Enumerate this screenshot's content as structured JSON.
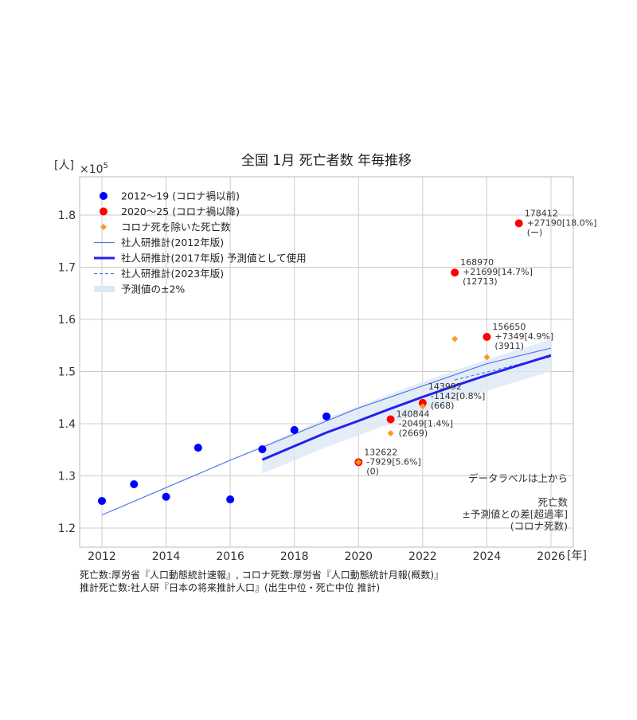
{
  "chart_data": {
    "type": "scatter",
    "title": "全国 1月 死亡者数 年毎推移",
    "ylabel": "[人]",
    "yexp": "×10",
    "yexp_sup": "5",
    "xlabel": "[年]",
    "xlim": [
      2011.4,
      2026.7
    ],
    "ylim": [
      1.165,
      1.87
    ],
    "xticks": [
      2012,
      2014,
      2016,
      2018,
      2020,
      2022,
      2024,
      2026
    ],
    "yticks": [
      1.2,
      1.3,
      1.4,
      1.5,
      1.6,
      1.7,
      1.8
    ],
    "grid": true,
    "legend_placement": "top-left",
    "legend": [
      "2012〜19 (コロナ禍以前)",
      "2020〜25 (コロナ禍以降)",
      "コロナ死を除いた死亡数",
      "社人研推計(2012年版)",
      "社人研推計(2017年版) 予測値として使用",
      "社人研推計(2023年版)",
      "予測値の±2%"
    ],
    "colors": {
      "pre": "#0000ff",
      "post": "#ff0000",
      "excl": "#ff9922",
      "proj2012": "#5577ee",
      "proj2017": "#2222ee",
      "proj2023": "#5577ee",
      "band": "#dde8f5"
    },
    "pre_covid": {
      "x": [
        2012,
        2013,
        2014,
        2015,
        2016,
        2017,
        2018,
        2019
      ],
      "y": [
        1.252,
        1.284,
        1.26,
        1.354,
        1.255,
        1.351,
        1.388,
        1.414
      ]
    },
    "post_covid": {
      "x": [
        2020,
        2021,
        2022,
        2023,
        2024,
        2025
      ],
      "y": [
        1.32622,
        1.40844,
        1.43992,
        1.6897,
        1.5665,
        1.78412
      ]
    },
    "excl_covid": {
      "x": [
        2020,
        2021,
        2022,
        2023,
        2024
      ],
      "y": [
        1.32622,
        1.38175,
        1.43324,
        1.56257,
        1.52739
      ]
    },
    "proj2012": {
      "x": [
        2012,
        2016,
        2020,
        2024,
        2026
      ],
      "y": [
        1.225,
        1.33,
        1.43,
        1.515,
        1.545
      ]
    },
    "proj2017": {
      "x": [
        2017,
        2018,
        2019,
        2020,
        2021,
        2022,
        2023,
        2024,
        2025,
        2026
      ],
      "y": [
        1.331,
        1.357,
        1.383,
        1.4055,
        1.4289,
        1.4513,
        1.4727,
        1.493,
        1.5122,
        1.531
      ]
    },
    "proj2023": {
      "x": [
        2023,
        2024,
        2025,
        2026
      ],
      "y": [
        1.484,
        1.499,
        1.514,
        1.528
      ]
    },
    "band_pct": 2,
    "labels": [
      {
        "x": 2020,
        "lines": [
          "132622",
          "-7929[5.6%]",
          "(0)"
        ]
      },
      {
        "x": 2021,
        "lines": [
          "140844",
          "-2049[1.4%]",
          "(2669)"
        ]
      },
      {
        "x": 2022,
        "lines": [
          "143992",
          "-1142[0.8%]",
          "(668)"
        ]
      },
      {
        "x": 2023,
        "lines": [
          "168970",
          "+21699[14.7%]",
          "(12713)"
        ]
      },
      {
        "x": 2024,
        "lines": [
          "156650",
          "+7349[4.9%]",
          "(3911)"
        ]
      },
      {
        "x": 2025,
        "lines": [
          "178412",
          "+27190[18.0%]",
          "(ー)"
        ]
      }
    ],
    "note": [
      "データラベルは上から",
      "",
      "死亡数",
      "±予測値との差[超過率]",
      "(コロナ死数)"
    ]
  },
  "source": {
    "line1": "死亡数:厚労省『人口動態統計速報』, コロナ死数:厚労省『人口動態統計月報(概数)』",
    "line2": "推計死亡数:社人研『日本の将来推計人口』(出生中位・死亡中位 推計)"
  }
}
